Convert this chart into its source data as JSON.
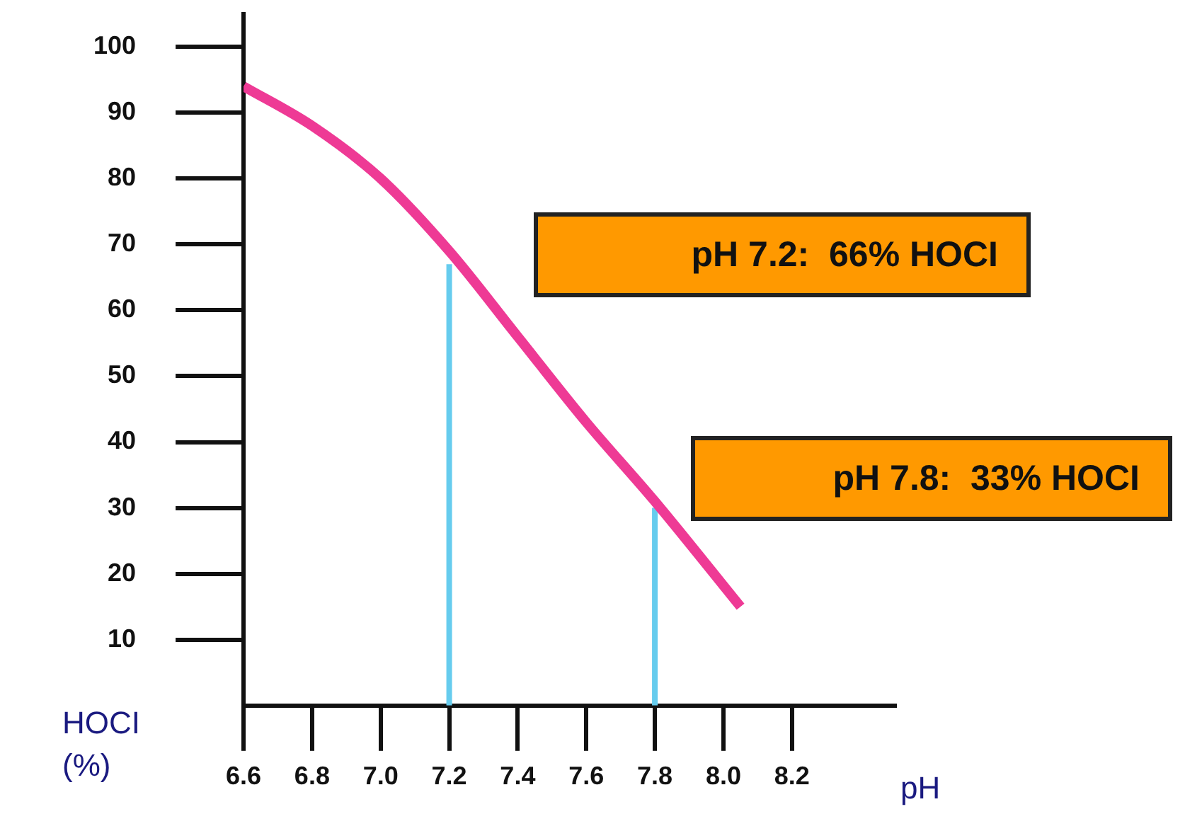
{
  "chart_data": {
    "type": "line",
    "xlabel": "pH",
    "ylabel": "HOCI (%)",
    "xlim": [
      6.6,
      8.5
    ],
    "xticks": [
      {
        "value": 6.6,
        "label": "6.6"
      },
      {
        "value": 6.8,
        "label": "6.8"
      },
      {
        "value": 7.0,
        "label": "7.0"
      },
      {
        "value": 7.2,
        "label": "7.2"
      },
      {
        "value": 7.4,
        "label": "7.4"
      },
      {
        "value": 7.6,
        "label": "7.6"
      },
      {
        "value": 7.8,
        "label": "7.8"
      },
      {
        "value": 8.0,
        "label": "8.0"
      },
      {
        "value": 8.2,
        "label": "8.2"
      }
    ],
    "ylim": [
      0,
      105
    ],
    "yticks": [
      10,
      20,
      30,
      40,
      50,
      60,
      70,
      80,
      90,
      100
    ],
    "series": [
      {
        "type": "line",
        "color": "#ee3a95",
        "x": [
          6.6,
          6.8,
          7.0,
          7.2,
          7.4,
          7.6,
          7.8,
          8.05
        ],
        "values": [
          94,
          88,
          80,
          69,
          56,
          43,
          31,
          15
        ]
      },
      {
        "type": "line",
        "color": "#66ccee",
        "x": [
          7.2,
          7.2
        ],
        "values": [
          0,
          67
        ]
      },
      {
        "type": "line",
        "color": "#66ccee",
        "x": [
          7.8,
          7.8
        ],
        "values": [
          0,
          30
        ]
      }
    ],
    "marker": "none",
    "grid": false,
    "legend": false,
    "annotations": [
      "pH 7.2:  66% HOCI",
      "pH 7.8:  33% HOCI"
    ]
  }
}
